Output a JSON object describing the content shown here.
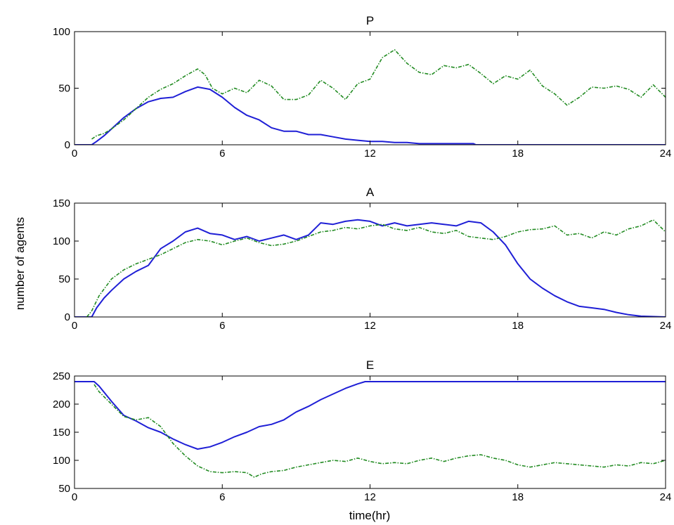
{
  "figure": {
    "ylabel": "number of agents",
    "xlabel": "time(hr)"
  },
  "chart_data": [
    {
      "type": "line",
      "title": "P",
      "xlim": [
        0,
        24
      ],
      "ylim": [
        0,
        100
      ],
      "xticks": [
        0,
        6,
        12,
        18,
        24
      ],
      "yticks": [
        0,
        50,
        100
      ],
      "grid": false,
      "series": [
        {
          "color": "#1f1fd6",
          "style": "solid",
          "x": [
            0,
            0.7,
            0.9,
            1.2,
            1.5,
            2.0,
            2.5,
            3.0,
            3.5,
            4.0,
            4.5,
            5.0,
            5.5,
            6.0,
            6.5,
            7.0,
            7.5,
            8.0,
            8.5,
            9.0,
            9.5,
            10.0,
            10.5,
            11.0,
            11.5,
            12.0,
            12.5,
            13.0,
            13.5,
            14.0,
            15.0,
            16.2,
            16.3,
            24
          ],
          "y": [
            0,
            0,
            3,
            8,
            14,
            24,
            32,
            38,
            41,
            42,
            47,
            51,
            49,
            42,
            33,
            26,
            22,
            15,
            12,
            12,
            9,
            9,
            7,
            5,
            4,
            3,
            3,
            2,
            2,
            1,
            1,
            1,
            0,
            0
          ]
        },
        {
          "color": "#228b22",
          "style": "dashdot",
          "x": [
            0.7,
            0.9,
            1.2,
            1.5,
            2.0,
            2.5,
            3.0,
            3.5,
            4.0,
            4.5,
            5.0,
            5.3,
            5.6,
            6.0,
            6.5,
            7.0,
            7.5,
            8.0,
            8.5,
            9.0,
            9.5,
            10.0,
            10.5,
            11.0,
            11.5,
            12.0,
            12.5,
            13.0,
            13.5,
            14.0,
            14.5,
            15.0,
            15.5,
            16.0,
            16.5,
            17.0,
            17.5,
            18.0,
            18.5,
            19.0,
            19.5,
            20.0,
            20.5,
            21.0,
            21.5,
            22.0,
            22.5,
            23.0,
            23.5,
            24.0
          ],
          "y": [
            5,
            8,
            10,
            14,
            22,
            32,
            42,
            49,
            54,
            61,
            67,
            62,
            50,
            45,
            50,
            46,
            57,
            52,
            40,
            40,
            44,
            57,
            50,
            40,
            54,
            58,
            77,
            84,
            72,
            64,
            62,
            70,
            68,
            71,
            63,
            54,
            61,
            58,
            66,
            52,
            45,
            35,
            42,
            51,
            50,
            52,
            49,
            42,
            53,
            42
          ]
        }
      ]
    },
    {
      "type": "line",
      "title": "A",
      "xlim": [
        0,
        24
      ],
      "ylim": [
        0,
        150
      ],
      "xticks": [
        0,
        6,
        12,
        18,
        24
      ],
      "yticks": [
        0,
        50,
        100,
        150
      ],
      "grid": false,
      "series": [
        {
          "color": "#1f1fd6",
          "style": "solid",
          "x": [
            0,
            0.7,
            0.9,
            1.2,
            1.5,
            2.0,
            2.5,
            3.0,
            3.5,
            4.0,
            4.5,
            5.0,
            5.5,
            6.0,
            6.5,
            7.0,
            7.5,
            8.0,
            8.5,
            9.0,
            9.5,
            10.0,
            10.5,
            11.0,
            11.5,
            12.0,
            12.5,
            13.0,
            13.5,
            14.0,
            14.5,
            15.0,
            15.5,
            16.0,
            16.5,
            17.0,
            17.5,
            18.0,
            18.5,
            19.0,
            19.5,
            20.0,
            20.5,
            21.0,
            21.5,
            22.0,
            22.5,
            23.0,
            24.0
          ],
          "y": [
            0,
            0,
            12,
            25,
            35,
            50,
            60,
            68,
            90,
            100,
            112,
            117,
            110,
            108,
            102,
            106,
            100,
            104,
            108,
            102,
            108,
            124,
            122,
            126,
            128,
            126,
            120,
            124,
            120,
            122,
            124,
            122,
            120,
            126,
            124,
            112,
            95,
            70,
            50,
            38,
            28,
            20,
            14,
            12,
            10,
            6,
            3,
            1,
            0
          ]
        },
        {
          "color": "#228b22",
          "style": "dashdot",
          "x": [
            0.5,
            0.7,
            1.0,
            1.5,
            2.0,
            2.5,
            3.0,
            3.5,
            4.0,
            4.5,
            5.0,
            5.5,
            6.0,
            6.5,
            7.0,
            7.5,
            8.0,
            8.5,
            9.0,
            9.5,
            10.0,
            10.5,
            11.0,
            11.5,
            12.0,
            12.5,
            13.0,
            13.5,
            14.0,
            14.5,
            15.0,
            15.5,
            16.0,
            16.5,
            17.0,
            17.5,
            18.0,
            18.5,
            19.0,
            19.5,
            20.0,
            20.5,
            21.0,
            21.5,
            22.0,
            22.5,
            23.0,
            23.5,
            24.0
          ],
          "y": [
            0,
            8,
            28,
            50,
            62,
            70,
            76,
            82,
            90,
            98,
            102,
            100,
            95,
            100,
            104,
            98,
            94,
            96,
            100,
            106,
            112,
            114,
            118,
            116,
            120,
            122,
            116,
            114,
            118,
            112,
            110,
            114,
            106,
            104,
            102,
            106,
            112,
            115,
            116,
            120,
            108,
            110,
            104,
            112,
            108,
            116,
            120,
            128,
            112
          ]
        }
      ]
    },
    {
      "type": "line",
      "title": "E",
      "xlim": [
        0,
        24
      ],
      "ylim": [
        50,
        250
      ],
      "xticks": [
        0,
        6,
        12,
        18,
        24
      ],
      "yticks": [
        50,
        100,
        150,
        200,
        250
      ],
      "grid": false,
      "series": [
        {
          "color": "#1f1fd6",
          "style": "solid",
          "x": [
            0,
            0.8,
            1.0,
            1.5,
            2.0,
            2.5,
            3.0,
            3.5,
            4.0,
            4.5,
            5.0,
            5.5,
            6.0,
            6.5,
            7.0,
            7.5,
            8.0,
            8.5,
            9.0,
            9.5,
            10.0,
            10.5,
            11.0,
            11.5,
            11.8,
            24.0
          ],
          "y": [
            240,
            240,
            232,
            205,
            180,
            170,
            158,
            150,
            138,
            128,
            120,
            124,
            132,
            142,
            150,
            160,
            164,
            172,
            186,
            196,
            208,
            218,
            228,
            236,
            240,
            240
          ]
        },
        {
          "color": "#228b22",
          "style": "dashdot",
          "x": [
            0.8,
            1.0,
            1.5,
            2.0,
            2.5,
            3.0,
            3.5,
            4.0,
            4.5,
            5.0,
            5.5,
            6.0,
            6.5,
            7.0,
            7.3,
            7.6,
            8.0,
            8.5,
            9.0,
            9.5,
            10.0,
            10.5,
            11.0,
            11.5,
            12.0,
            12.5,
            13.0,
            13.5,
            14.0,
            14.5,
            15.0,
            15.5,
            16.0,
            16.5,
            17.0,
            17.5,
            18.0,
            18.5,
            19.0,
            19.5,
            20.0,
            20.5,
            21.0,
            21.5,
            22.0,
            22.5,
            23.0,
            23.5,
            24.0
          ],
          "y": [
            235,
            222,
            200,
            178,
            172,
            176,
            160,
            130,
            108,
            90,
            80,
            78,
            80,
            78,
            70,
            76,
            80,
            82,
            88,
            92,
            96,
            100,
            98,
            104,
            98,
            94,
            96,
            94,
            100,
            104,
            98,
            104,
            108,
            110,
            104,
            100,
            92,
            88,
            92,
            96,
            94,
            92,
            90,
            88,
            92,
            90,
            96,
            94,
            100
          ]
        }
      ]
    }
  ]
}
